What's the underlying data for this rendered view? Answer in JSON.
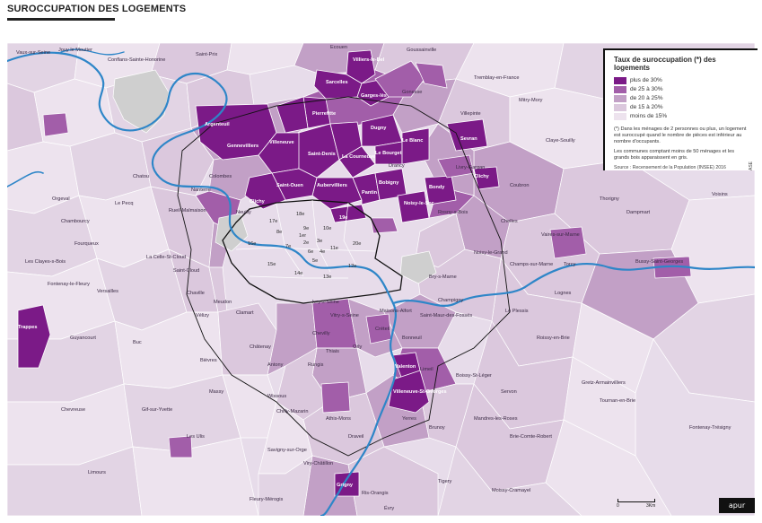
{
  "title": "SUROCCUPATION DES LOGEMENTS",
  "legend": {
    "title": "Taux de suroccupation (*) des logements",
    "classes": [
      {
        "label": "plus de 30%",
        "color": "#7b1a87"
      },
      {
        "label": "de 25 à 30%",
        "color": "#a25ea9"
      },
      {
        "label": "de 20 à 25%",
        "color": "#c2a0c6"
      },
      {
        "label": "de 15 à 20%",
        "color": "#dbc8dd"
      },
      {
        "label": "moins de 15%",
        "color": "#ede3ee"
      }
    ],
    "note1": "(*) Dans les ménages de 2 personnes ou plus, un logement est suroccupé quand le nombre de pièces est inférieur au nombre d'occupants.",
    "note2": "Les communes comptant moins de 50 ménages et les grands bois apparaissent en gris.",
    "source": "Source : Recensement de la Population (INSEE) 2016",
    "code": "ASE"
  },
  "colors": {
    "water": "#2e86c8",
    "grey": "#cfcfcf",
    "paris_boundary": "#111111",
    "commune_border": "#ffffff"
  },
  "scale": {
    "left": "0",
    "right": "3Km"
  },
  "logo": "apur",
  "arrondissements": [
    "1er",
    "2e",
    "3e",
    "4e",
    "5e",
    "6e",
    "7e",
    "8e",
    "9e",
    "10e",
    "11e",
    "12e",
    "13e",
    "14e",
    "15e",
    "16e",
    "17e",
    "18e",
    "19e",
    "20e"
  ],
  "communes": {
    "over30": [
      "Villiers-le-Bel",
      "Sarcelles",
      "Garges-lès-Gonesse",
      "Pierrefitte-sur-Seine",
      "Villetaneuse",
      "Saint-Denis",
      "Gennevilliers",
      "Villeneuve-la-Garenne",
      "Aubervilliers",
      "La Courneuve",
      "Saint-Ouen",
      "Clichy",
      "Dugny",
      "Stains",
      "Le Blanc-Mesnil",
      "Le Bourget",
      "Sevran",
      "Pantin",
      "Bobigny",
      "Noisy-le-Sec",
      "Bondy",
      "Clichy-sous-Bois",
      "Trappes",
      "Valenton",
      "Villeneuve-Saint-Georges",
      "Grigny"
    ],
    "other": [
      "Vaux-sur-Seine",
      "Vernouillet",
      "Verneuil-sur-Seine",
      "Triel-sur-Seine",
      "Joüy-le-Moutier",
      "Conflans-Sainte-Honorine",
      "Maurecourt",
      "Herblay",
      "Montigny-lès-Cormeilles",
      "Frépillon",
      "Saint-Prix",
      "Ecouen",
      "Le Plessis-Bouchard",
      "Saint-Brice-sous-Forêt",
      "Gonesse",
      "Le Thillay",
      "Tremblay-en-France",
      "Mitry-Mory",
      "Villepinte",
      "Villeparisis",
      "Claye-Souilly",
      "Aulnay-sous-Bois",
      "Livry-Gargan",
      "Vaujours",
      "Coubron",
      "Le Raincy",
      "Villemomble",
      "Montfermeil",
      "Gagny",
      "Neuilly-sur-Marne",
      "Chelles",
      "Vaires-sur-Marne",
      "Torcy",
      "Noisiel",
      "Champs-sur-Marne",
      "Noisy-le-Grand",
      "Bry-sur-Marne",
      "Lognes",
      "Bussy-Saint-Georges",
      "Ferrières-en-Brie",
      "Roissy-en-Brie",
      "Pontault-Combault",
      "Ozoir-la-Ferrière",
      "Gretz-Armainvilliers",
      "Tournan-en-Brie",
      "Lésigny",
      "Servon",
      "Brie-Comte-Robert",
      "Santeny",
      "Villecresnes",
      "Boissy-Saint-Léger",
      "Sucy-en-Brie",
      "Ormesson-sur-Marne",
      "Chennevières-sur-Marne",
      "Le Plessis-Trévise",
      "La Queue-en-Brie",
      "Champigny-sur-Marne",
      "Saint-Maur-des-Fossés",
      "Créteil",
      "Bonneuil-sur-Marne",
      "Limeil-Brévannes",
      "Vitry-sur-Seine",
      "Ivry-sur-Seine",
      "Villejuif",
      "Cachan",
      "Thiais",
      "Orly",
      "Choisy-le-Roi",
      "Rungis",
      "Fresnes",
      "Antony",
      "Chilly-Mazarin",
      "Morangis",
      "Savigny-sur-Orge",
      "Viry-Châtillon",
      "Juvisy-sur-Orge",
      "Athis-Mons",
      "Paray-Vieille-Poste",
      "Wissous",
      "Massy",
      "Palaiseau",
      "Igny",
      "Bièvres",
      "Vélizy-Villacoublay",
      "Meudon",
      "Clamart",
      "Châtillon",
      "Montrouge",
      "Malakoff",
      "Vanves",
      "Issy-les-Moulineaux",
      "Boulogne-Billancourt",
      "Saint-Cloud",
      "Sèvres",
      "Chaville",
      "Ville-d'Avray",
      "Versailles",
      "Le Chesnay",
      "Rocquencourt",
      "Guyancourt",
      "Montigny-le-Bretonneux",
      "Voisins-le-Bretonneux",
      "Magny-les-Hameaux",
      "Saint-Aubin",
      "Gif-sur-Yvette",
      "Orsay",
      "Bures-sur-Yvette",
      "Les Ulis",
      "Villebon-sur-Yvette",
      "Chevreuse",
      "Saint-Rémy-lès-Chevreuse",
      "Longjumeau",
      "Épinay-sur-Orge",
      "Sainte-Geneviève-des-Bois",
      "Fleury-Mérogis",
      "Ris-Orangis",
      "Évry",
      "Courcouronnes",
      "Draveil",
      "Vigneux-sur-Seine",
      "Montgeron",
      "Yerres",
      "Brunoy",
      "Crosne",
      "Quincy-sous-Sénart",
      "Boussy-Saint-Antoine",
      "Épinay-sous-Sénart",
      "Mandres-les-Roses",
      "Périgny",
      "Combs-la-Ville",
      "Lieusaint",
      "Moissy-Cramayel",
      "Tigery",
      "Saint-Germain-lès-Corbeil",
      "Étiolles",
      "Soisy-sur-Seine",
      "Nanterre",
      "Rueil-Malmaison",
      "Courbevoie",
      "Puteaux",
      "Suresnes",
      "Colombes",
      "Bois-Colombes",
      "La Garenne-Colombes",
      "Asnières-sur-Seine",
      "Levallois-Perret",
      "Neuilly-sur-Seine",
      "Argenteuil",
      "Bezons",
      "Houilles",
      "Sartrouville",
      "Carrières-sur-Seine",
      "Chatou",
      "Le Vésinet",
      "Croissy-sur-Seine",
      "Le Pecq",
      "Saint-Germain-en-Laye",
      "Montesson",
      "Maisons-Laffitte",
      "Le Mesnil-le-Roi",
      "Carrières-sous-Poissy",
      "Poissy",
      "Orgeval",
      "Chambourcy",
      "Fourqueux",
      "Mareil-Marly",
      "Marly-le-Roi",
      "Louveciennes",
      "Bougival",
      "La Celle-Saint-Cloud",
      "Vaucresson",
      "Garches",
      "Marnes-la-Coquette",
      "Rennemoulin",
      "Noisy-le-Roi",
      "Bailly",
      "Saint-Nom-la-Bretèche",
      "Fontenay-le-Fleury",
      "Saint-Cyr-l'École",
      "Bois-d'Arcy",
      "Les Clayes-sous-Bois",
      "Plaisir",
      "Buc",
      "Jouy-en-Josas",
      "Les Loges-en-Josas",
      "Toussus-le-Noble",
      "Châteaufort",
      "Verrières-le-Buisson",
      "Châtenay-Malabry",
      "Le Plessis-Robinson",
      "Sceaux",
      "Bourg-la-Reine",
      "Fontenay-aux-Roses",
      "Bagneux",
      "Arcueil",
      "Gentilly",
      "L'Haÿ-les-Roses",
      "Chevilly-Larue",
      "Le Kremlin-Bicêtre",
      "Charenton-le-Pont",
      "Saint-Maurice",
      "Maisons-Alfort",
      "Alfortville",
      "Joinville-le-Pont",
      "Saint-Mandé",
      "Vincennes",
      "Montreuil",
      "Fontenay-sous-Bois",
      "Nogent-sur-Marne",
      "Le Perreux-sur-Marne",
      "Rosny-sous-Bois",
      "Bagnolet",
      "Les Lilas",
      "Le Pré-Saint-Gervais",
      "Romainville",
      "Drancy",
      "Épinay-sur-Seine",
      "Deuil-la-Barre",
      "Montmagny",
      "Groslay",
      "Montmorency",
      "Soisy-sous-Montmorency",
      "Eaubonne",
      "Ermont",
      "Sannois",
      "Franconville",
      "Saint-Gratien",
      "Enghien-les-Bains",
      "Arnouville",
      "Bonneuil-en-France",
      "Garches-lès-Gonesse",
      "Vincennes",
      "Montevrain",
      "Dampmart",
      "Thorigny-sur-Marne",
      "Lagny-sur-Marne",
      "Saint-Thibault-des-Vignes",
      "Bussy-Saint-Martin",
      "Collégien",
      "Croissy-Beaubourg",
      "Émerainville",
      "Chessy",
      "Esbly",
      "Coupvray",
      "Voisins",
      "Villevaudé",
      "Le Pin",
      "Courtry",
      "Brou-sur-Chantereine",
      "Carnetin",
      "Annet-sur-Marne",
      "Jablines",
      "Pomponne"
    ]
  }
}
